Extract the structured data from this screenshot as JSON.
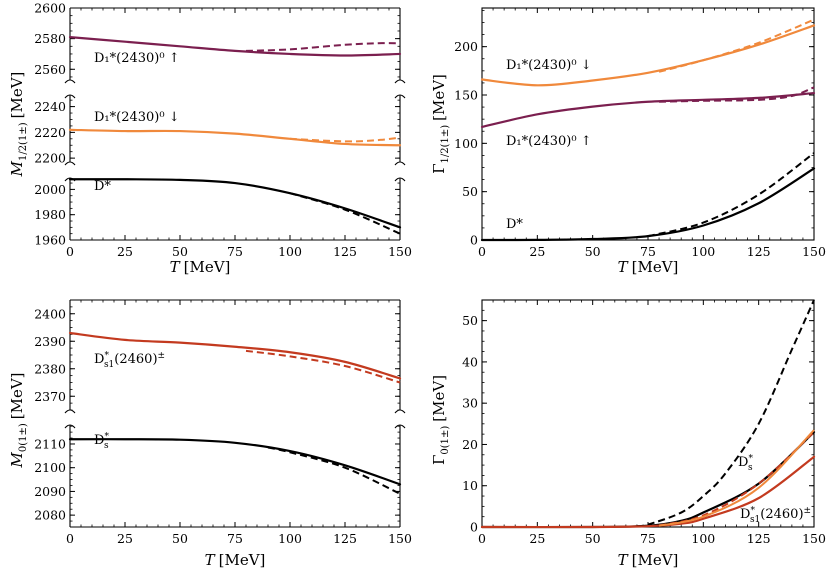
{
  "colors": {
    "black": "#000000",
    "purple": "#7b1f4f",
    "orange": "#f0893c",
    "red": "#c33a1f"
  },
  "chart_data": [
    {
      "id": "p1",
      "type": "line",
      "xlabel": "T [MeV]",
      "ylabel": "M_{1/2(1±)} [MeV]",
      "xlim": [
        0,
        150
      ],
      "xticks": [
        "0",
        "25",
        "50",
        "75",
        "100",
        "125",
        "150"
      ],
      "broken_axis": true,
      "segments": [
        {
          "ylim": [
            2553,
            2600
          ],
          "yticks": [
            "2560",
            "2580",
            "2600"
          ]
        },
        {
          "ylim": [
            2197,
            2249
          ],
          "yticks": [
            "2200",
            "2220",
            "2240"
          ]
        },
        {
          "ylim": [
            1960,
            2009
          ],
          "yticks": [
            "1960",
            "1980",
            "2000"
          ]
        }
      ],
      "series": [
        {
          "label": "D₁*(2430)⁰ ↑",
          "color": "purple",
          "segment": 0,
          "x": [
            0,
            25,
            50,
            75,
            100,
            125,
            150
          ],
          "y": [
            2581,
            2578,
            2575,
            2572,
            2570,
            2569,
            2570
          ],
          "dashed": {
            "x": [
              80,
              100,
              125,
              140,
              150
            ],
            "y": [
              2572,
              2573,
              2576,
              2577,
              2577
            ]
          }
        },
        {
          "label": "D₁*(2430)⁰ ↓",
          "color": "orange",
          "segment": 1,
          "x": [
            0,
            25,
            50,
            75,
            100,
            125,
            150
          ],
          "y": [
            2222,
            2221,
            2221,
            2219,
            2215,
            2211,
            2210
          ],
          "dashed": {
            "x": [
              100,
              125,
              140,
              150
            ],
            "y": [
              2215,
              2213,
              2214,
              2216
            ]
          }
        },
        {
          "label": "D*",
          "color": "black",
          "segment": 2,
          "x": [
            0,
            25,
            50,
            75,
            100,
            125,
            150
          ],
          "y": [
            2008,
            2008,
            2007.5,
            2005,
            1997,
            1985,
            1970
          ],
          "dashed": {
            "x": [
              100,
              125,
              150
            ],
            "y": [
              1997,
              1984,
              1965
            ]
          }
        }
      ]
    },
    {
      "id": "p2",
      "type": "line",
      "xlabel": "T [MeV]",
      "ylabel": "Γ_{1/2(1±)} [MeV]",
      "xlim": [
        0,
        150
      ],
      "ylim": [
        0,
        240
      ],
      "xticks": [
        "0",
        "25",
        "50",
        "75",
        "100",
        "125",
        "150"
      ],
      "yticks": [
        "0",
        "50",
        "100",
        "150",
        "200"
      ],
      "series": [
        {
          "label": "D₁*(2430)⁰ ↓",
          "color": "orange",
          "x": [
            0,
            25,
            50,
            75,
            100,
            125,
            150
          ],
          "y": [
            166,
            160,
            165,
            173,
            186,
            202,
            222
          ],
          "dashed": {
            "x": [
              80,
              100,
              125,
              150
            ],
            "y": [
              174,
              186,
              204,
              228
            ]
          }
        },
        {
          "label": "D₁*(2430)⁰ ↑",
          "color": "purple",
          "x": [
            0,
            25,
            50,
            75,
            100,
            125,
            150
          ],
          "y": [
            117,
            130,
            138,
            143,
            145,
            147,
            152
          ],
          "dashed": {
            "x": [
              80,
              100,
              125,
              140,
              150
            ],
            "y": [
              143,
              144,
              145,
              149,
              158
            ]
          }
        },
        {
          "label": "D*",
          "color": "black",
          "x": [
            0,
            25,
            50,
            75,
            100,
            125,
            150
          ],
          "y": [
            0,
            0.1,
            1,
            4,
            15,
            38,
            74
          ],
          "dashed": {
            "x": [
              75,
              100,
              125,
              150
            ],
            "y": [
              4,
              18,
              47,
              90
            ]
          }
        }
      ]
    },
    {
      "id": "p3",
      "type": "line",
      "xlabel": "T [MeV]",
      "ylabel": "M_{0(1±)} [MeV]",
      "xlim": [
        0,
        150
      ],
      "xticks": [
        "0",
        "25",
        "50",
        "75",
        "100",
        "125",
        "150"
      ],
      "broken_axis": true,
      "segments": [
        {
          "ylim": [
            2365,
            2405
          ],
          "yticks": [
            "2370",
            "2380",
            "2390",
            "2400"
          ]
        },
        {
          "ylim": [
            2075,
            2118
          ],
          "yticks": [
            "2080",
            "2090",
            "2100",
            "2110"
          ]
        }
      ],
      "series": [
        {
          "label": "D*_{s1}(2460)^±",
          "color": "red",
          "segment": 0,
          "x": [
            0,
            25,
            50,
            75,
            100,
            125,
            150
          ],
          "y": [
            2393,
            2390.5,
            2389.5,
            2388,
            2386,
            2382.5,
            2376.5
          ],
          "dashed": {
            "x": [
              80,
              100,
              125,
              150
            ],
            "y": [
              2386.5,
              2384.5,
              2381,
              2375
            ]
          }
        },
        {
          "label": "D_s*",
          "color": "black",
          "segment": 1,
          "x": [
            0,
            25,
            50,
            75,
            100,
            125,
            150
          ],
          "y": [
            2112,
            2112,
            2111.8,
            2110.5,
            2107,
            2101,
            2093
          ],
          "dashed": {
            "x": [
              90,
              100,
              125,
              150
            ],
            "y": [
              2108.5,
              2106.5,
              2100,
              2089
            ]
          }
        }
      ]
    },
    {
      "id": "p4",
      "type": "line",
      "xlabel": "T [MeV]",
      "ylabel": "Γ_{0(1±)} [MeV]",
      "xlim": [
        0,
        150
      ],
      "ylim": [
        0,
        55
      ],
      "xticks": [
        "0",
        "25",
        "50",
        "75",
        "100",
        "125",
        "150"
      ],
      "yticks": [
        "0",
        "10",
        "20",
        "30",
        "40",
        "50"
      ],
      "series": [
        {
          "label": "D_s*",
          "color": "black",
          "x": [
            0,
            50,
            75,
            90,
            100,
            125,
            150
          ],
          "y": [
            0,
            0,
            0.3,
            1.5,
            3.5,
            10.5,
            23
          ],
          "dashed": {
            "x": [
              70,
              75,
              90,
              100,
              110,
              125,
              140,
              150
            ],
            "y": [
              0.2,
              0.6,
              3.5,
              7.5,
              13,
              25,
              43,
              57
            ]
          }
        },
        {
          "label": "D*_{s1}(2460)^±",
          "color": "red",
          "x": [
            0,
            50,
            75,
            90,
            100,
            125,
            150
          ],
          "y": [
            0,
            0,
            0.2,
            0.8,
            2,
            7,
            17
          ],
          "dashed": {
            "x": [
              80,
              100,
              125,
              150
            ],
            "y": [
              0.4,
              2.8,
              10.5,
              23
            ]
          },
          "extra": {
            "x": [
              80,
              100,
              125,
              150
            ],
            "y": [
              0.3,
              2.5,
              9.5,
              23.5
            ]
          }
        }
      ]
    }
  ],
  "labels": {
    "p1_purple": "D₁*(2430)⁰ ↑",
    "p1_orange": "D₁*(2430)⁰ ↓",
    "p1_black": "D*",
    "p2_orange": "D₁*(2430)⁰ ↓",
    "p2_purple": "D₁*(2430)⁰ ↑",
    "p2_black": "D*",
    "p3_red_main": "D",
    "p3_red_sub": "s1",
    "p3_red_sup": "*",
    "p3_red_tail": "(2460)",
    "p3_red_pm": "±",
    "p3_black_main": "D",
    "p3_black_sub": "s",
    "p3_black_sup": "*",
    "p4_black_main": "D",
    "p4_black_sub": "s",
    "p4_black_sup": "*",
    "p4_red_main": "D",
    "p4_red_sub": "s1",
    "p4_red_sup": "*",
    "p4_red_tail": "(2460)",
    "p4_red_pm": "±"
  },
  "axes": {
    "xlabel_main": "T",
    "xlabel_unit": "[MeV]",
    "p1_ylabel_main": "M",
    "p1_ylabel_sub": "1/2(1±)",
    "p1_ylabel_unit": "[MeV]",
    "p2_ylabel_main": "Γ",
    "p2_ylabel_sub": "1/2(1±)",
    "p2_ylabel_unit": "[MeV]",
    "p3_ylabel_main": "M",
    "p3_ylabel_sub": "0(1±)",
    "p3_ylabel_unit": "[MeV]",
    "p4_ylabel_main": "Γ",
    "p4_ylabel_sub": "0(1±)",
    "p4_ylabel_unit": "[MeV]"
  }
}
